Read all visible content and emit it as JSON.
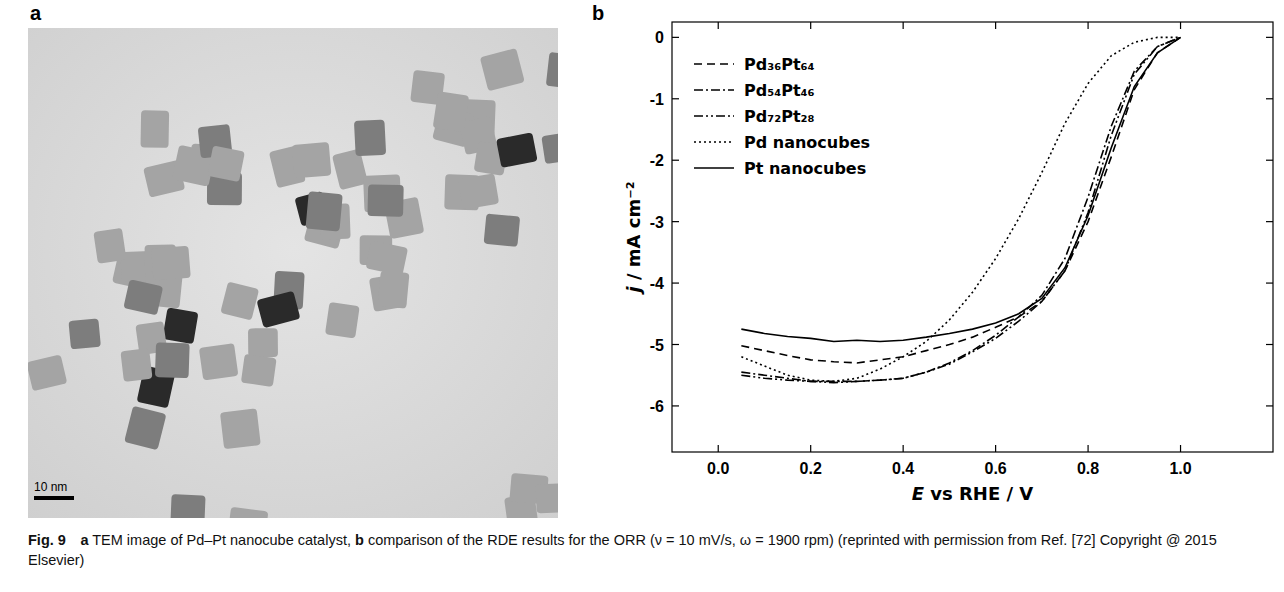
{
  "chart_data": {
    "type": "line",
    "x_label": "E vs RHE / V",
    "y_label": "j / mA cm⁻²",
    "x": [
      0.05,
      0.1,
      0.15,
      0.2,
      0.25,
      0.3,
      0.35,
      0.4,
      0.45,
      0.5,
      0.55,
      0.6,
      0.65,
      0.7,
      0.75,
      0.8,
      0.85,
      0.9,
      0.95,
      1.0
    ],
    "series": [
      {
        "name": "Pd₃₆Pt₆₄",
        "color": "#000000",
        "line_style": "dashed",
        "values": [
          -5.02,
          -5.1,
          -5.18,
          -5.25,
          -5.28,
          -5.3,
          -5.25,
          -5.2,
          -5.1,
          -5.0,
          -4.88,
          -4.72,
          -4.55,
          -4.3,
          -3.8,
          -3.0,
          -1.95,
          -0.85,
          -0.25,
          0
        ]
      },
      {
        "name": "Pd₅₄Pt₄₆",
        "color": "#000000",
        "line_style": "dashdot",
        "values": [
          -5.45,
          -5.5,
          -5.55,
          -5.6,
          -5.6,
          -5.6,
          -5.58,
          -5.55,
          -5.45,
          -5.3,
          -5.1,
          -4.85,
          -4.55,
          -4.2,
          -3.6,
          -2.6,
          -1.45,
          -0.55,
          -0.15,
          0
        ]
      },
      {
        "name": "Pd₇₂Pt₂₈",
        "color": "#000000",
        "line_style": "dashdotdot",
        "values": [
          -5.5,
          -5.55,
          -5.58,
          -5.6,
          -5.62,
          -5.6,
          -5.58,
          -5.55,
          -5.45,
          -5.32,
          -5.12,
          -4.9,
          -4.62,
          -4.3,
          -3.8,
          -2.85,
          -1.6,
          -0.6,
          -0.15,
          0
        ]
      },
      {
        "name": "Pd nanocubes",
        "color": "#000000",
        "line_style": "dotted",
        "values": [
          -5.2,
          -5.35,
          -5.5,
          -5.58,
          -5.6,
          -5.55,
          -5.4,
          -5.2,
          -4.95,
          -4.6,
          -4.15,
          -3.6,
          -2.95,
          -2.2,
          -1.4,
          -0.75,
          -0.3,
          -0.08,
          0,
          0
        ]
      },
      {
        "name": "Pt nanocubes",
        "color": "#000000",
        "line_style": "solid",
        "values": [
          -4.75,
          -4.82,
          -4.87,
          -4.9,
          -4.95,
          -4.93,
          -4.95,
          -4.93,
          -4.88,
          -4.82,
          -4.75,
          -4.65,
          -4.5,
          -4.25,
          -3.75,
          -2.9,
          -1.8,
          -0.8,
          -0.25,
          0
        ]
      }
    ],
    "xlim": [
      -0.1,
      1.2
    ],
    "ylim": [
      -6.75,
      0.25
    ],
    "xticks": [
      {
        "value": 0,
        "label": "0.0"
      },
      0.2,
      0.4,
      0.6,
      0.8,
      {
        "value": 1,
        "label": "1.0"
      }
    ],
    "yticks": [
      -6,
      -5,
      -4,
      -3,
      -2,
      -1,
      0
    ],
    "legend": "upper left"
  },
  "figure": {
    "panel_a": {
      "letter": "a",
      "scale_bar": "10 nm"
    },
    "panel_b": {
      "letter": "b"
    },
    "caption": {
      "label": "Fig. 9",
      "items": [
        {
          "letter": "a",
          "text": "TEM image of Pd–Pt nanocube catalyst,"
        },
        {
          "letter": "b",
          "text": "comparison of the RDE results for the ORR (ν = 10 mV/s, ω = 1900 rpm) (reprinted with permission from Ref. [72] Copyright @ 2015 Elsevier)"
        }
      ]
    }
  }
}
